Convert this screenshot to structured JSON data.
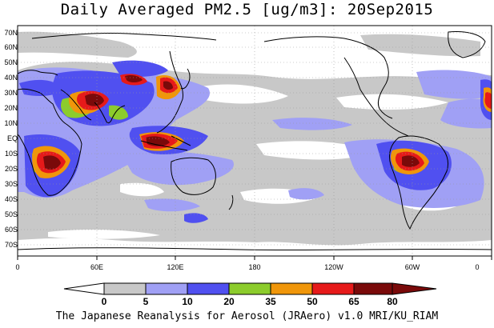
{
  "title": "Daily Averaged PM2.5 [ug/m3]: 20Sep2015",
  "footer": "The Japanese Reanalysis for Aerosol (JRAero) v1.0 MRI/KU_RIAM",
  "map": {
    "latitude_labels": [
      "70N",
      "60N",
      "50N",
      "40N",
      "30N",
      "20N",
      "10N",
      "EQ",
      "10S",
      "20S",
      "30S",
      "40S",
      "50S",
      "60S",
      "70S"
    ],
    "longitude_labels": [
      "0",
      "60E",
      "120E",
      "180",
      "120W",
      "60W",
      "0"
    ],
    "grid": "dotted"
  },
  "colorbar": {
    "labels": [
      "0",
      "5",
      "10",
      "20",
      "35",
      "50",
      "65",
      "80"
    ],
    "colors": [
      "#ffffff",
      "#c8c8c8",
      "#a0a0f5",
      "#5050f0",
      "#8ccc2c",
      "#f0960a",
      "#e61a1a",
      "#7a0a0a"
    ],
    "unit": "ug/m3"
  },
  "palette": {
    "land": "#000000",
    "gray": "#c8c8c8",
    "light_blue": "#a0a0f5",
    "blue": "#5050f0",
    "green": "#8ccc2c",
    "orange": "#f0960a",
    "red": "#e61a1a",
    "dark_red": "#7a0a0a"
  }
}
